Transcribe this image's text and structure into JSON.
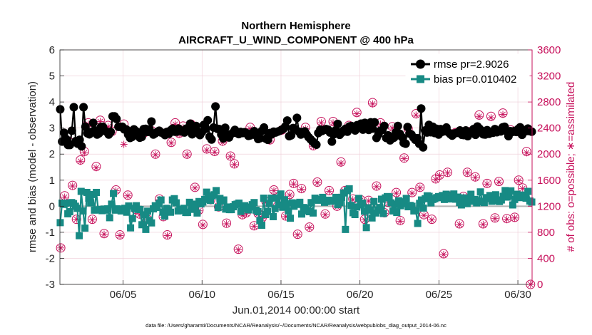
{
  "chart_data": {
    "type": "line",
    "title": "Northern Hemisphere",
    "subtitle": "AIRCRAFT_U_WIND_COMPONENT @ 400 hPa",
    "xlabel": "Jun.01,2014 00:00:00 start",
    "ylabel": "rmse and bias (model - observation)",
    "y2label": "# of obs: o=possible; ∗=assimilated",
    "footnote": "data file: /Users/gharamti/Documents/NCAR/Reanalysis/~/Documents/NCAR/Reanalysis/webpub/obs_diag_output_2014-06.nc",
    "xlim": [
      1,
      30.9
    ],
    "ylim": [
      -3,
      6
    ],
    "y2lim": [
      0,
      3600
    ],
    "x_ticks": [
      5,
      10,
      15,
      20,
      25,
      30
    ],
    "x_tick_labels": [
      "06/05",
      "06/10",
      "06/15",
      "06/20",
      "06/25",
      "06/30"
    ],
    "y_ticks": [
      -3,
      -2,
      -1,
      0,
      1,
      2,
      3,
      4,
      5,
      6
    ],
    "y_tick_labels": [
      "-3",
      "-2",
      "-1",
      "0",
      "1",
      "2",
      "3",
      "4",
      "5",
      "6"
    ],
    "y2_ticks": [
      0,
      400,
      800,
      1200,
      1600,
      2000,
      2400,
      2800,
      3200,
      3600
    ],
    "y2_tick_labels": [
      "0",
      "400",
      "800",
      "1200",
      "1600",
      "2000",
      "2400",
      "2800",
      "3200",
      "3600"
    ],
    "grid": true,
    "legend_position": "top-right",
    "colors": {
      "rmse": "#000000",
      "bias": "#178a84",
      "obs": "#c7105b",
      "zero_line": "#b4b4b4",
      "grid": "#eecbd6"
    },
    "series": [
      {
        "name": "rmse pr=2.9026",
        "axis": "left",
        "marker": "circle",
        "values": [
          3.72,
          2.48,
          2.82,
          2.58,
          2.35,
          2.35,
          2.9,
          3.8,
          2.5,
          2.4,
          2.55,
          2.3,
          3.8,
          3.05,
          2.8,
          2.76,
          2.85,
          3.2,
          2.91,
          2.75,
          2.8,
          3.04,
          3.05,
          2.9,
          2.85,
          2.75,
          2.85,
          3.45,
          3.45,
          3.35,
          3.05,
          3.05,
          3.05,
          2.95,
          2.95,
          2.75,
          2.62,
          2.66,
          2.95,
          2.88,
          2.83,
          2.63,
          2.66,
          2.96,
          2.97,
          2.85,
          2.95,
          3.25,
          2.75,
          2.8,
          2.85,
          2.9,
          2.83,
          2.81,
          2.73,
          2.85,
          2.78,
          2.92,
          2.98,
          2.86,
          2.86,
          2.98,
          2.9,
          2.86,
          2.83,
          2.98,
          2.96,
          3.17,
          2.76,
          2.98,
          3.08,
          2.86,
          2.73,
          2.84,
          3.12,
          2.97,
          3.3,
          2.67,
          2.56,
          3.02,
          3.83,
          2.97,
          2.96,
          2.75,
          2.6,
          3.01,
          2.76,
          2.64,
          2.77,
          2.82,
          2.93,
          2.81,
          2.77,
          2.85,
          2.81,
          2.84,
          2.81,
          2.7,
          2.72,
          2.8,
          2.88,
          2.71,
          2.58,
          2.61,
          2.9,
          3.02,
          2.59,
          2.55,
          2.81,
          2.76,
          2.86,
          2.83,
          2.86,
          2.89,
          2.93,
          2.97,
          3.06,
          3.29,
          2.69,
          2.72,
          3.0,
          2.96,
          3.39,
          2.86,
          2.75,
          2.85,
          2.87,
          2.75,
          2.65,
          2.57,
          2.49,
          2.41,
          2.36,
          2.81,
          2.94,
          2.89,
          2.93,
          2.96,
          2.94,
          2.83,
          2.48,
          2.76,
          2.92,
          3.16,
          2.74,
          2.82,
          2.91,
          2.97,
          2.86,
          3.06,
          3.08,
          3.0,
          2.91,
          3.11,
          3.06,
          3.17,
          2.94,
          3.2,
          3.06,
          2.93,
          3.22,
          2.98,
          3.22,
          2.62,
          2.76,
          2.9,
          2.93,
          3.08,
          2.62,
          2.72,
          2.53,
          2.6,
          2.63,
          2.84,
          3.08,
          2.78,
          2.66,
          2.43,
          2.4,
          3.04,
          2.79,
          2.75,
          2.64,
          2.55,
          2.61,
          2.4,
          3.75,
          2.26,
          2.91,
          2.83,
          3.12,
          2.84,
          3.05,
          2.81,
          2.97,
          2.75,
          2.96,
          2.86,
          2.88,
          3.02,
          2.84,
          2.77,
          2.71,
          2.79,
          2.81,
          2.83,
          2.91,
          2.74,
          2.73,
          2.91,
          2.69,
          2.79,
          2.83,
          2.96,
          2.74,
          3.06,
          2.98,
          2.91,
          2.76,
          2.75,
          2.92,
          2.78,
          2.85,
          2.82,
          2.96,
          2.84,
          2.9,
          2.87,
          3.03,
          3.05,
          2.88,
          2.69,
          2.88,
          2.85,
          2.89,
          2.85,
          2.96,
          3.03,
          2.74,
          2.87,
          2.88,
          2.98,
          2.88,
          2.86
        ]
      },
      {
        "name": "bias pr=0.010402",
        "axis": "left",
        "marker": "square",
        "values": [
          -0.63,
          0.12,
          0.07,
          0.12,
          -0.29,
          -0.21,
          0.14,
          0.1,
          0.0,
          -0.08,
          -1.13,
          0.57,
          -0.18,
          -0.84,
          0.53,
          0.31,
          0.13,
          0.45,
          -0.15,
          0.53,
          -0.14,
          -0.13,
          -0.17,
          -0.11,
          -0.15,
          -0.1,
          -0.44,
          0.08,
          0.49,
          -0.15,
          -0.1,
          -0.13,
          -0.18,
          -0.12,
          -0.08,
          -0.23,
          0.01,
          -0.83,
          -0.47,
          -0.08,
          0.02,
          -0.12,
          -0.13,
          -0.71,
          -0.33,
          -0.89,
          -0.19,
          -0.55,
          -0.64,
          -0.1,
          0.02,
          -0.05,
          0.11,
          0.24,
          -0.23,
          -0.38,
          -0.08,
          -0.15,
          -0.23,
          0.24,
          0.29,
          0.13,
          -0.18,
          -0.13,
          -0.16,
          -0.08,
          -0.24,
          -0.24,
          0.15,
          -0.12,
          0.08,
          -0.06,
          -0.26,
          0.18,
          0.09,
          0.16,
          0.26,
          0.54,
          0.38,
          0.22,
          0.4,
          0.44,
          0.6,
          -0.05,
          0.3,
          0.19,
          0.24,
          -0.11,
          -0.03,
          -0.13,
          -0.13,
          -0.02,
          0.06,
          0.08,
          0.12,
          -0.2,
          -0.09,
          0.02,
          -0.05,
          -0.14,
          -0.03,
          0.06,
          0.14,
          -0.15,
          -0.21,
          -0.55,
          -0.73,
          0.31,
          -0.32,
          -0.2,
          0.1,
          0.31,
          -0.4,
          -0.09,
          0.32,
          0.05,
          0.47,
          -0.04,
          0.25,
          0.09,
          -0.18,
          -0.46,
          0.13,
          0.0,
          0.11,
          0.07,
          0.15,
          -0.3,
          -0.05,
          -0.08,
          -0.17,
          -0.21,
          0.14,
          -0.26,
          0.31,
          0.25,
          0.23,
          0.26,
          0.34,
          0.15,
          0.18,
          0.23,
          0.19,
          0.2,
          0.22,
          0.34,
          0.06,
          0.14,
          0.34,
          0.51,
          -0.89,
          0.6,
          0.67,
          0.03,
          -0.25,
          -0.32,
          -0.03,
          0.3,
          0.05,
          0.12,
          -0.19,
          -0.82,
          -0.06,
          -0.15,
          -0.45,
          0.18,
          -0.26,
          -0.15,
          -0.05,
          0.27,
          -0.28,
          0.32,
          0.37,
          0.36,
          0.13,
          -0.18,
          0.08,
          -0.24,
          0.21,
          0.02,
          0.17,
          0.1,
          0.3,
          -0.02,
          0.03,
          0.0,
          -0.18,
          -0.16,
          -0.66,
          0.11,
          0.24,
          -0.07,
          0.29,
          0.4,
          0.38,
          0.13,
          0.26,
          0.29,
          0.33,
          0.37,
          0.33,
          0.41,
          0.26,
          0.46,
          0.41,
          0.28,
          0.31,
          0.47,
          0.27,
          0.35,
          0.14,
          0.05,
          0.32,
          0.2,
          0.1,
          0.3,
          0.46,
          0.19,
          0.26,
          0.13,
          0.21,
          0.55,
          0.17,
          0.14,
          0.33,
          0.29,
          0.41,
          0.19,
          0.22,
          0.44,
          0.24,
          0.18,
          0.24,
          0.38,
          0.6,
          0.35,
          0.4,
          0.59,
          0.05,
          0.26,
          0.46,
          0.38,
          0.33,
          0.43,
          0.35,
          0.31,
          0.57,
          0.2,
          0.16
        ]
      },
      {
        "name": "possible observations",
        "axis": "right",
        "marker": "circle-open",
        "x": [
          1.05,
          1.3,
          1.55,
          1.8,
          2.05,
          2.3,
          2.55,
          2.8,
          3.05,
          3.3,
          3.55,
          3.8,
          4.05,
          4.3,
          4.55,
          4.8,
          5.05,
          5.3,
          5.55,
          5.8,
          6.05,
          6.3,
          6.55,
          6.8,
          7.05,
          7.3,
          7.55,
          7.8,
          8.05,
          8.3,
          8.55,
          8.8,
          9.05,
          9.3,
          9.55,
          9.8,
          10.05,
          10.3,
          10.55,
          10.8,
          11.05,
          11.3,
          11.55,
          11.8,
          12.05,
          12.3,
          12.55,
          12.8,
          13.05,
          13.3,
          13.55,
          13.8,
          14.05,
          14.3,
          14.55,
          14.8,
          15.05,
          15.3,
          15.55,
          15.8,
          16.05,
          16.3,
          16.55,
          16.8,
          17.05,
          17.3,
          17.55,
          17.8,
          18.05,
          18.3,
          18.55,
          18.8,
          19.05,
          19.3,
          19.55,
          19.8,
          20.05,
          20.3,
          20.55,
          20.8,
          21.05,
          21.3,
          21.55,
          21.8,
          22.05,
          22.3,
          22.55,
          22.8,
          23.05,
          23.3,
          23.55,
          23.8,
          24.05,
          24.3,
          24.55,
          24.8,
          25.05,
          25.3,
          25.55,
          25.8,
          26.05,
          26.3,
          26.55,
          26.8,
          27.05,
          27.3,
          27.55,
          27.8,
          28.05,
          28.3,
          28.55,
          28.8,
          29.05,
          29.3,
          29.55,
          29.8,
          30.05,
          30.3,
          30.55,
          30.8
        ],
        "values": [
          560,
          1360,
          2200,
          1520,
          1000,
          1910,
          2040,
          2480,
          1000,
          1810,
          2520,
          780,
          2440,
          2350,
          1450,
          760,
          2460,
          1370,
          2350,
          1150,
          1080,
          2320,
          1000,
          2360,
          2000,
          1310,
          1040,
          760,
          2180,
          2480,
          2320,
          2430,
          2000,
          2460,
          1490,
          1140,
          920,
          2080,
          1300,
          2040,
          1190,
          2200,
          940,
          1970,
          1850,
          540,
          1070,
          1100,
          2410,
          900,
          1090,
          1020,
          1270,
          2220,
          1450,
          1210,
          2370,
          1050,
          1380,
          1550,
          770,
          1470,
          2410,
          880,
          2130,
          1570,
          2500,
          1080,
          1440,
          2500,
          1200,
          1880,
          1440,
          2440,
          1310,
          2640,
          1300,
          1000,
          1290,
          2790,
          1510,
          2480,
          1100,
          1260,
          2420,
          1410,
          980,
          1940,
          2390,
          1410,
          2620,
          1490,
          1070,
          2370,
          1000,
          1620,
          1680,
          470,
          1720,
          1360,
          2330,
          930,
          1350,
          1720,
          2350,
          1650,
          2600,
          930,
          1550,
          2580,
          1020,
          1580,
          2630,
          1010,
          2370,
          1030,
          1600,
          1480,
          2040,
          0
        ]
      },
      {
        "name": "assimilated observations",
        "axis": "right",
        "marker": "asterisk",
        "x": [
          1.05,
          1.3,
          1.55,
          1.8,
          2.05,
          2.3,
          2.55,
          2.8,
          3.05,
          3.3,
          3.55,
          3.8,
          4.05,
          4.3,
          4.55,
          4.8,
          5.05,
          5.3,
          5.55,
          5.8,
          6.05,
          6.3,
          6.55,
          6.8,
          7.05,
          7.3,
          7.55,
          7.8,
          8.05,
          8.3,
          8.55,
          8.8,
          9.05,
          9.3,
          9.55,
          9.8,
          10.05,
          10.3,
          10.55,
          10.8,
          11.05,
          11.3,
          11.55,
          11.8,
          12.05,
          12.3,
          12.55,
          12.8,
          13.05,
          13.3,
          13.55,
          13.8,
          14.05,
          14.3,
          14.55,
          14.8,
          15.05,
          15.3,
          15.55,
          15.8,
          16.05,
          16.3,
          16.55,
          16.8,
          17.05,
          17.3,
          17.55,
          17.8,
          18.05,
          18.3,
          18.55,
          18.8,
          19.05,
          19.3,
          19.55,
          19.8,
          20.05,
          20.3,
          20.55,
          20.8,
          21.05,
          21.3,
          21.55,
          21.8,
          22.05,
          22.3,
          22.55,
          22.8,
          23.05,
          23.3,
          23.55,
          23.8,
          24.05,
          24.3,
          24.55,
          24.8,
          25.05,
          25.3,
          25.55,
          25.8,
          26.05,
          26.3,
          26.55,
          26.8,
          27.05,
          27.3,
          27.55,
          27.8,
          28.05,
          28.3,
          28.55,
          28.8,
          29.05,
          29.3,
          29.55,
          29.8,
          30.05,
          30.3,
          30.55,
          30.8
        ],
        "values": [
          560,
          1340,
          2180,
          1510,
          1000,
          1890,
          2020,
          2460,
          990,
          1790,
          2500,
          770,
          2420,
          2330,
          1440,
          750,
          2150,
          1360,
          2330,
          1140,
          1070,
          2300,
          990,
          2340,
          1990,
          1300,
          1030,
          750,
          2170,
          2460,
          2300,
          2410,
          1990,
          2440,
          1480,
          1130,
          910,
          2060,
          1290,
          2030,
          1180,
          2180,
          930,
          1960,
          1840,
          530,
          1060,
          1090,
          2390,
          890,
          1080,
          1010,
          1260,
          2200,
          1440,
          1200,
          2350,
          1040,
          1370,
          1540,
          760,
          1460,
          2390,
          870,
          2120,
          1560,
          2480,
          1070,
          1430,
          2480,
          1190,
          1860,
          1430,
          2420,
          1300,
          2620,
          1290,
          990,
          1280,
          2770,
          1500,
          2460,
          1090,
          1250,
          2400,
          1400,
          970,
          1930,
          2370,
          1400,
          2600,
          1480,
          1060,
          2350,
          990,
          1610,
          1670,
          460,
          1710,
          1350,
          2310,
          920,
          1340,
          1710,
          2330,
          1640,
          2580,
          920,
          1540,
          2560,
          1010,
          1570,
          2610,
          1000,
          2350,
          1020,
          1590,
          1470,
          2020,
          0
        ]
      }
    ]
  }
}
